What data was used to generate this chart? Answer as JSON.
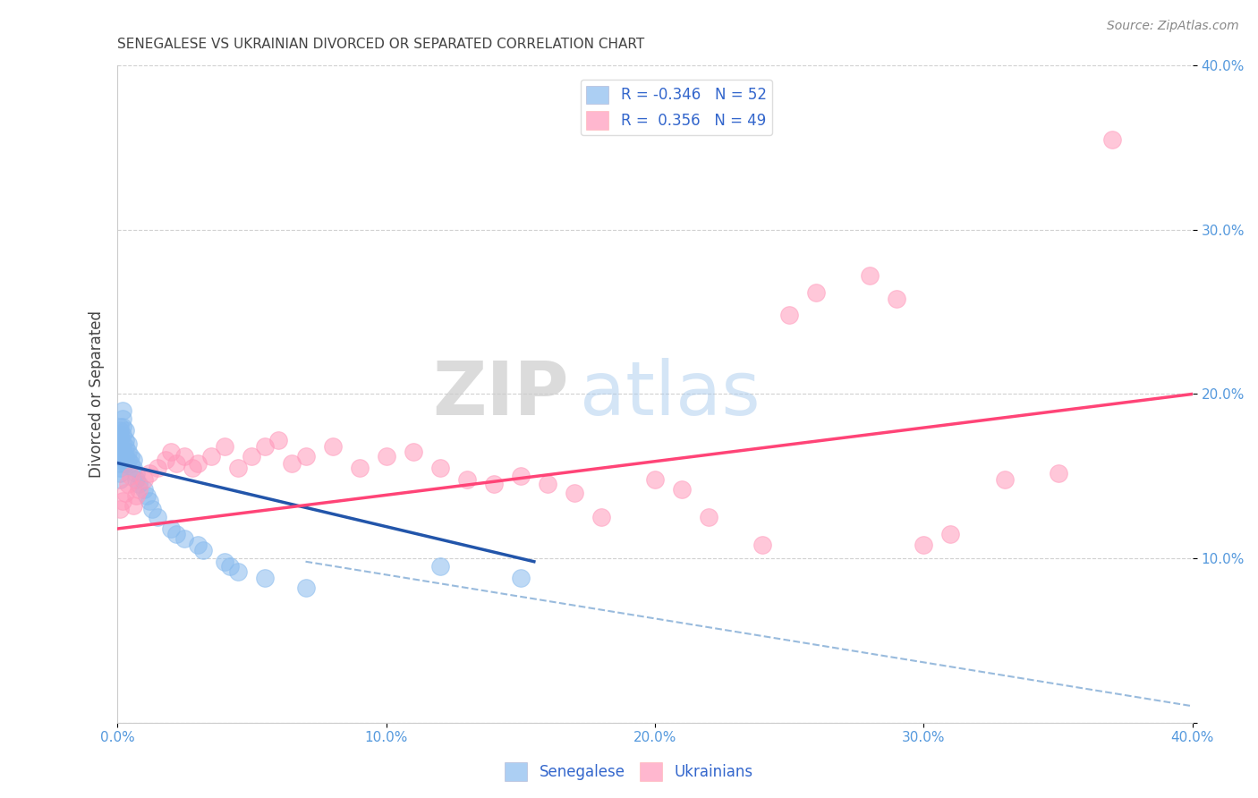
{
  "title": "SENEGALESE VS UKRAINIAN DIVORCED OR SEPARATED CORRELATION CHART",
  "source": "Source: ZipAtlas.com",
  "ylabel": "Divorced or Separated",
  "xlim": [
    0.0,
    0.4
  ],
  "ylim": [
    0.0,
    0.4
  ],
  "xticks": [
    0.0,
    0.1,
    0.2,
    0.3,
    0.4
  ],
  "yticks": [
    0.0,
    0.1,
    0.2,
    0.3,
    0.4
  ],
  "xtick_labels": [
    "0.0%",
    "10.0%",
    "20.0%",
    "30.0%",
    "40.0%"
  ],
  "ytick_labels": [
    "",
    "10.0%",
    "20.0%",
    "30.0%",
    "40.0%"
  ],
  "legend_r1": "R = -0.346",
  "legend_n1": "N = 52",
  "legend_r2": "R =  0.356",
  "legend_n2": "N = 49",
  "blue_color": "#89BBEE",
  "pink_color": "#FF99BB",
  "line_blue_color": "#2255AA",
  "line_pink_color": "#FF4477",
  "line_dash_color": "#99BBDD",
  "watermark_zip": "ZIP",
  "watermark_atlas": "atlas",
  "senegalese_x": [
    0.001,
    0.001,
    0.001,
    0.001,
    0.001,
    0.001,
    0.001,
    0.001,
    0.001,
    0.001,
    0.001,
    0.001,
    0.001,
    0.002,
    0.002,
    0.002,
    0.002,
    0.002,
    0.002,
    0.002,
    0.003,
    0.003,
    0.003,
    0.003,
    0.003,
    0.004,
    0.004,
    0.004,
    0.005,
    0.005,
    0.006,
    0.006,
    0.007,
    0.007,
    0.008,
    0.01,
    0.011,
    0.012,
    0.013,
    0.015,
    0.02,
    0.022,
    0.025,
    0.03,
    0.032,
    0.04,
    0.042,
    0.045,
    0.055,
    0.07,
    0.12,
    0.15
  ],
  "senegalese_y": [
    0.155,
    0.16,
    0.165,
    0.17,
    0.175,
    0.158,
    0.148,
    0.152,
    0.162,
    0.168,
    0.172,
    0.178,
    0.18,
    0.16,
    0.165,
    0.17,
    0.175,
    0.18,
    0.185,
    0.19,
    0.158,
    0.162,
    0.168,
    0.172,
    0.178,
    0.16,
    0.165,
    0.17,
    0.158,
    0.162,
    0.155,
    0.16,
    0.148,
    0.152,
    0.145,
    0.142,
    0.138,
    0.135,
    0.13,
    0.125,
    0.118,
    0.115,
    0.112,
    0.108,
    0.105,
    0.098,
    0.095,
    0.092,
    0.088,
    0.082,
    0.095,
    0.088
  ],
  "ukrainian_x": [
    0.001,
    0.002,
    0.003,
    0.004,
    0.005,
    0.006,
    0.007,
    0.008,
    0.01,
    0.012,
    0.015,
    0.018,
    0.02,
    0.022,
    0.025,
    0.028,
    0.03,
    0.035,
    0.04,
    0.045,
    0.05,
    0.055,
    0.06,
    0.065,
    0.07,
    0.08,
    0.09,
    0.1,
    0.11,
    0.12,
    0.13,
    0.14,
    0.15,
    0.16,
    0.17,
    0.18,
    0.2,
    0.21,
    0.22,
    0.24,
    0.25,
    0.26,
    0.28,
    0.29,
    0.3,
    0.31,
    0.33,
    0.35,
    0.37
  ],
  "ukrainian_y": [
    0.13,
    0.135,
    0.14,
    0.145,
    0.15,
    0.132,
    0.138,
    0.142,
    0.148,
    0.152,
    0.155,
    0.16,
    0.165,
    0.158,
    0.162,
    0.155,
    0.158,
    0.162,
    0.168,
    0.155,
    0.162,
    0.168,
    0.172,
    0.158,
    0.162,
    0.168,
    0.155,
    0.162,
    0.165,
    0.155,
    0.148,
    0.145,
    0.15,
    0.145,
    0.14,
    0.125,
    0.148,
    0.142,
    0.125,
    0.108,
    0.248,
    0.262,
    0.272,
    0.258,
    0.108,
    0.115,
    0.148,
    0.152,
    0.355
  ],
  "blue_line_x": [
    0.0,
    0.155
  ],
  "blue_line_y": [
    0.158,
    0.098
  ],
  "pink_line_x": [
    0.0,
    0.4
  ],
  "pink_line_y": [
    0.118,
    0.2
  ],
  "dash_line_x": [
    0.07,
    0.4
  ],
  "dash_line_y": [
    0.098,
    0.01
  ],
  "background_color": "#FFFFFF",
  "grid_color": "#CCCCCC",
  "title_color": "#444444",
  "axis_label_color": "#444444",
  "tick_color_blue": "#5599DD",
  "legend_text_color": "#3366CC"
}
